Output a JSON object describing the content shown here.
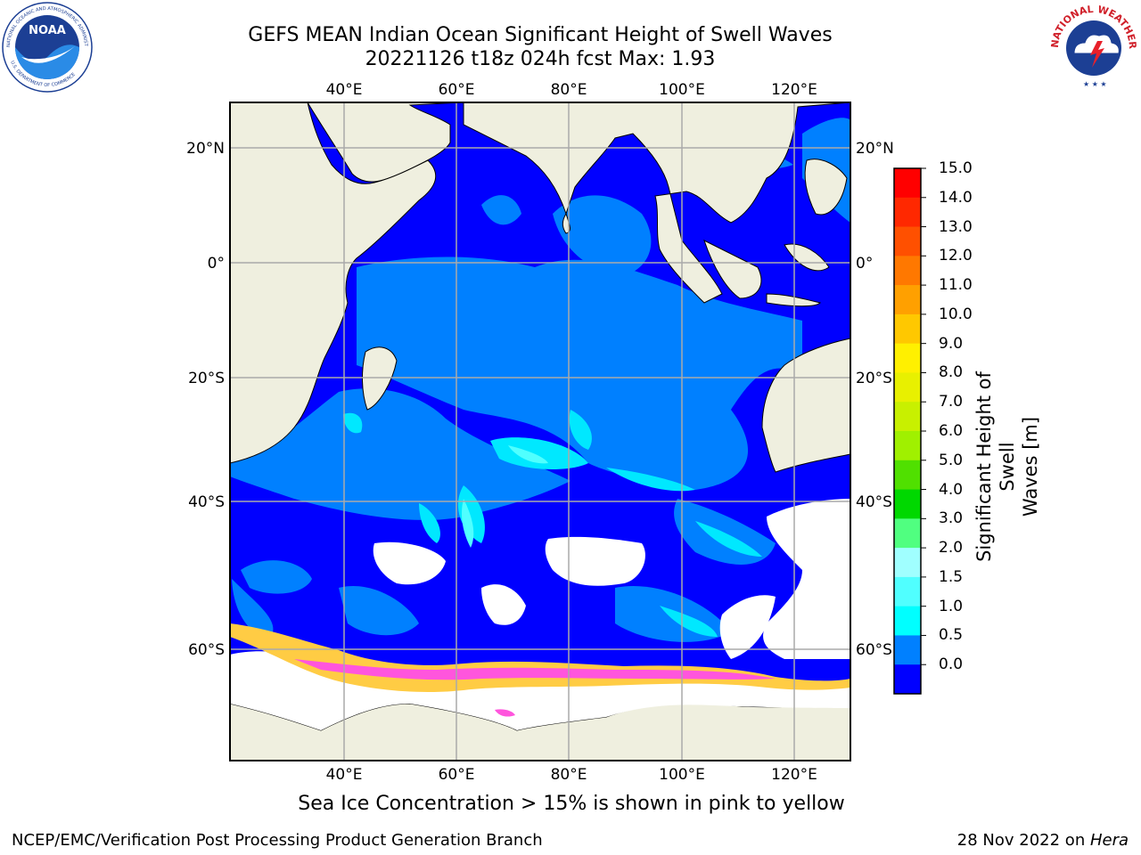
{
  "title": {
    "line1": "GEFS MEAN Indian Ocean Significant Height of Swell Waves",
    "line2": "20221126 t18z 024h fcst   Max: 1.93"
  },
  "map": {
    "lon_ticks": [
      "40°E",
      "60°E",
      "80°E",
      "100°E",
      "120°E"
    ],
    "lat_ticks": [
      "20°N",
      "0°",
      "20°S",
      "40°S",
      "60°S"
    ],
    "colors": {
      "ocean_base": "#0000ff",
      "swell_low": "#0080ff",
      "swell_mid": "#00e8ff",
      "swell_high": "#50ffff",
      "land": "#efefdf",
      "ice_pink": "#ff55dd",
      "ice_yellow": "#ffcc44",
      "grid": "#aaaaaa"
    }
  },
  "colorbar": {
    "title_line1": "Significant Height of Swell",
    "title_line2": "Waves [m]",
    "levels": [
      "15.0",
      "14.0",
      "13.0",
      "12.0",
      "11.0",
      "10.0",
      "9.0",
      "8.0",
      "7.0",
      "6.0",
      "5.0",
      "4.0",
      "3.0",
      "2.0",
      "1.5",
      "1.0",
      "0.5",
      "0.0"
    ],
    "colors": [
      "#ff0000",
      "#ff2800",
      "#ff5000",
      "#ff7800",
      "#ffa000",
      "#ffc800",
      "#fff000",
      "#e8f000",
      "#c8f000",
      "#a0f000",
      "#50e000",
      "#00d800",
      "#50ff80",
      "#a0ffff",
      "#50ffff",
      "#00ffff",
      "#0080ff",
      "#0000ff"
    ]
  },
  "logos": {
    "left": "noaa-logo",
    "right": "nws-logo",
    "left_text": "NATIONAL OCEANIC AND ATMOSPHERIC ADMINISTRATION",
    "left_text_bottom": "U.S. DEPARTMENT OF COMMERCE",
    "left_center": "NOAA",
    "right_text": "NATIONAL WEATHER SERVICE"
  },
  "caption": "Sea Ice Concentration > 15% is shown in pink to yellow",
  "footer": {
    "left": "NCEP/EMC/Verification Post Processing Product Generation Branch",
    "right_prefix": "28 Nov 2022 on ",
    "right_host": "Hera"
  }
}
